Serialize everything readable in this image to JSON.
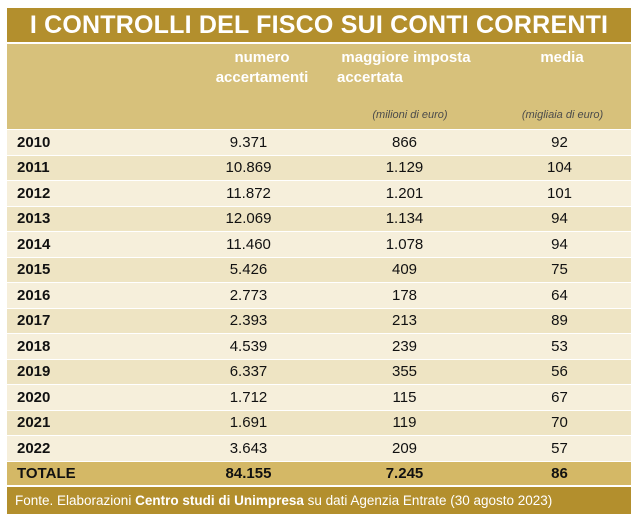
{
  "title": "I CONTROLLI DEL FISCO SUI CONTI CORRENTI",
  "headers": {
    "col1_line1": "numero",
    "col1_line2": "accertamenti",
    "col2_line1": "maggiore imposta",
    "col2_line2": "accertata",
    "col2_unit": "(milioni di euro)",
    "col3_line1": "media",
    "col3_unit": "(migliaia di euro)"
  },
  "colors": {
    "title_bg": "#b38f2d",
    "header_bg": "#d7c17b",
    "total_bg": "#d4b866",
    "row_light": "#f6efdb",
    "row_dark": "#eee4c3"
  },
  "chart_data": {
    "type": "table",
    "columns": [
      "",
      "numero accertamenti",
      "maggiore imposta accertata",
      "media"
    ],
    "rows": [
      [
        "2010",
        "9.371",
        "866",
        "92"
      ],
      [
        "2011",
        "10.869",
        "1.129",
        "104"
      ],
      [
        "2012",
        "11.872",
        "1.201",
        "101"
      ],
      [
        "2013",
        "12.069",
        "1.134",
        "94"
      ],
      [
        "2014",
        "11.460",
        "1.078",
        "94"
      ],
      [
        "2015",
        "5.426",
        "409",
        "75"
      ],
      [
        "2016",
        "2.773",
        "178",
        "64"
      ],
      [
        "2017",
        "2.393",
        "213",
        "89"
      ],
      [
        "2018",
        "4.539",
        "239",
        "53"
      ],
      [
        "2019",
        "6.337",
        "355",
        "56"
      ],
      [
        "2020",
        "1.712",
        "115",
        "67"
      ],
      [
        "2021",
        "1.691",
        "119",
        "70"
      ],
      [
        "2022",
        "3.643",
        "209",
        "57"
      ]
    ],
    "total": [
      "TOTALE",
      "84.155",
      "7.245",
      "86"
    ]
  },
  "source": {
    "prefix": "Fonte. Elaborazioni ",
    "bold": "Centro studi di Unimpresa",
    "suffix": " su dati Agenzia Entrate (30 agosto 2023)"
  }
}
